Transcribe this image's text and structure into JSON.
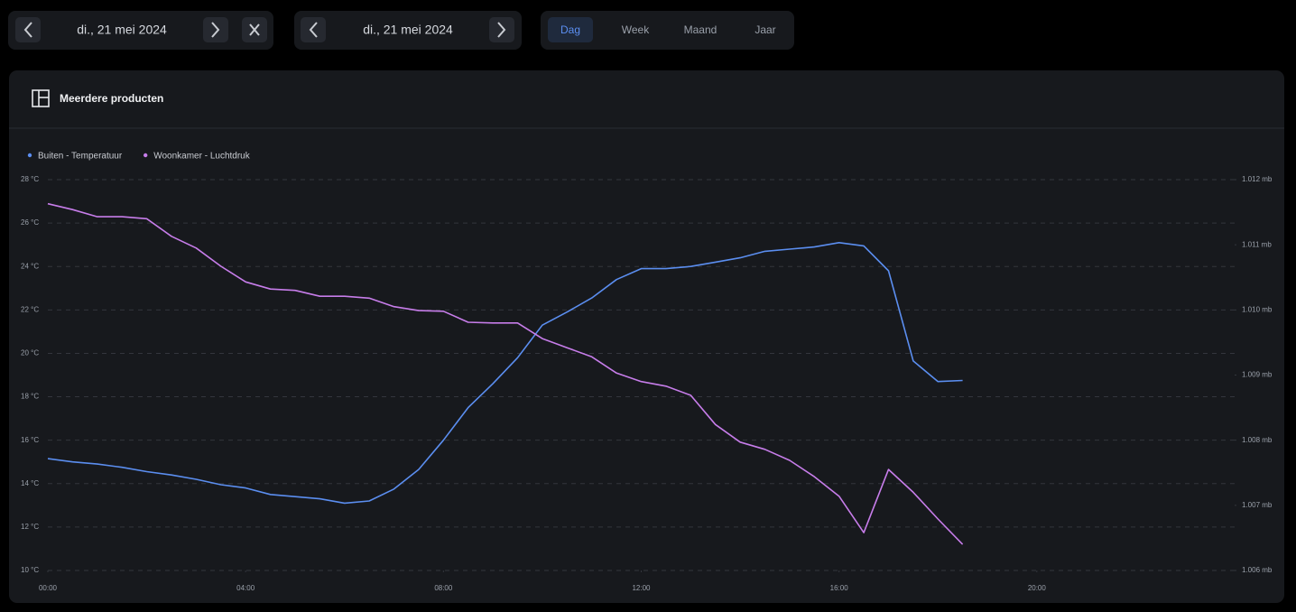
{
  "ui": {
    "date_from": "di., 21 mei 2024",
    "date_to": "di., 21 mei 2024",
    "periods": [
      "Dag",
      "Week",
      "Maand",
      "Jaar"
    ],
    "panel_title": "Meerdere producten"
  },
  "chart_data": {
    "type": "line",
    "x": [
      0,
      0.5,
      1,
      1.5,
      2,
      2.5,
      3,
      3.5,
      4,
      4.5,
      5,
      5.5,
      6,
      6.5,
      7,
      7.5,
      8,
      8.5,
      9,
      9.5,
      10,
      10.5,
      11,
      11.5,
      12,
      12.5,
      13,
      13.5,
      14,
      14.5,
      15,
      15.5,
      16,
      16.5,
      17,
      17.5,
      18,
      18.5
    ],
    "xlim": [
      0,
      24
    ],
    "xticks": [
      {
        "value": 0,
        "label": "00:00"
      },
      {
        "value": 4,
        "label": "04:00"
      },
      {
        "value": 8,
        "label": "08:00"
      },
      {
        "value": 12,
        "label": "12:00"
      },
      {
        "value": 16,
        "label": "16:00"
      },
      {
        "value": 20,
        "label": "20:00"
      }
    ],
    "ylim": [
      10,
      28
    ],
    "yticks": [
      {
        "value": 10,
        "label": "10 °C"
      },
      {
        "value": 12,
        "label": "12 °C"
      },
      {
        "value": 14,
        "label": "14 °C"
      },
      {
        "value": 16,
        "label": "16 °C"
      },
      {
        "value": 18,
        "label": "18 °C"
      },
      {
        "value": 20,
        "label": "20 °C"
      },
      {
        "value": 22,
        "label": "22 °C"
      },
      {
        "value": 24,
        "label": "24 °C"
      },
      {
        "value": 26,
        "label": "26 °C"
      },
      {
        "value": 28,
        "label": "28 °C"
      }
    ],
    "y2lim": [
      1.006,
      1.012
    ],
    "y2ticks": [
      {
        "value": 1.006,
        "label": "1.006 mb"
      },
      {
        "value": 1.007,
        "label": "1.007 mb"
      },
      {
        "value": 1.008,
        "label": "1.008 mb"
      },
      {
        "value": 1.009,
        "label": "1.009 mb"
      },
      {
        "value": 1.01,
        "label": "1.010 mb"
      },
      {
        "value": 1.011,
        "label": "1.011 mb"
      },
      {
        "value": 1.012,
        "label": "1.012 mb"
      }
    ],
    "grid": true,
    "series": [
      {
        "name": "Buiten - Temperatuur",
        "color": "#5b8ef0",
        "values": [
          15.15,
          15.0,
          14.9,
          14.75,
          14.55,
          14.4,
          14.2,
          13.95,
          13.8,
          13.5,
          13.4,
          13.3,
          13.1,
          13.2,
          13.75,
          14.65,
          16.0,
          17.5,
          18.6,
          19.8,
          21.3,
          21.9,
          22.55,
          23.4,
          23.9,
          23.9,
          24.0,
          24.2,
          24.4,
          24.7,
          24.8,
          24.9,
          25.1,
          24.95,
          23.8,
          19.65,
          18.7,
          18.75
        ]
      },
      {
        "name": "Woonkamer - Luchtdruk",
        "color": "#c77dea",
        "axis": "y2",
        "values": [
          1.01163,
          1.01154,
          1.01143,
          1.01143,
          1.0114,
          1.01113,
          1.01095,
          1.01067,
          1.01043,
          1.01032,
          1.0103,
          1.01021,
          1.01021,
          1.01018,
          1.01005,
          1.00999,
          1.00998,
          1.00981,
          1.0098,
          1.0098,
          1.00956,
          1.00942,
          1.00928,
          1.00903,
          1.0089,
          1.00883,
          1.00869,
          1.00824,
          1.00797,
          1.00786,
          1.00769,
          1.00744,
          1.00714,
          1.00658,
          1.00755,
          1.0072,
          1.00679,
          1.0064
        ]
      }
    ]
  }
}
